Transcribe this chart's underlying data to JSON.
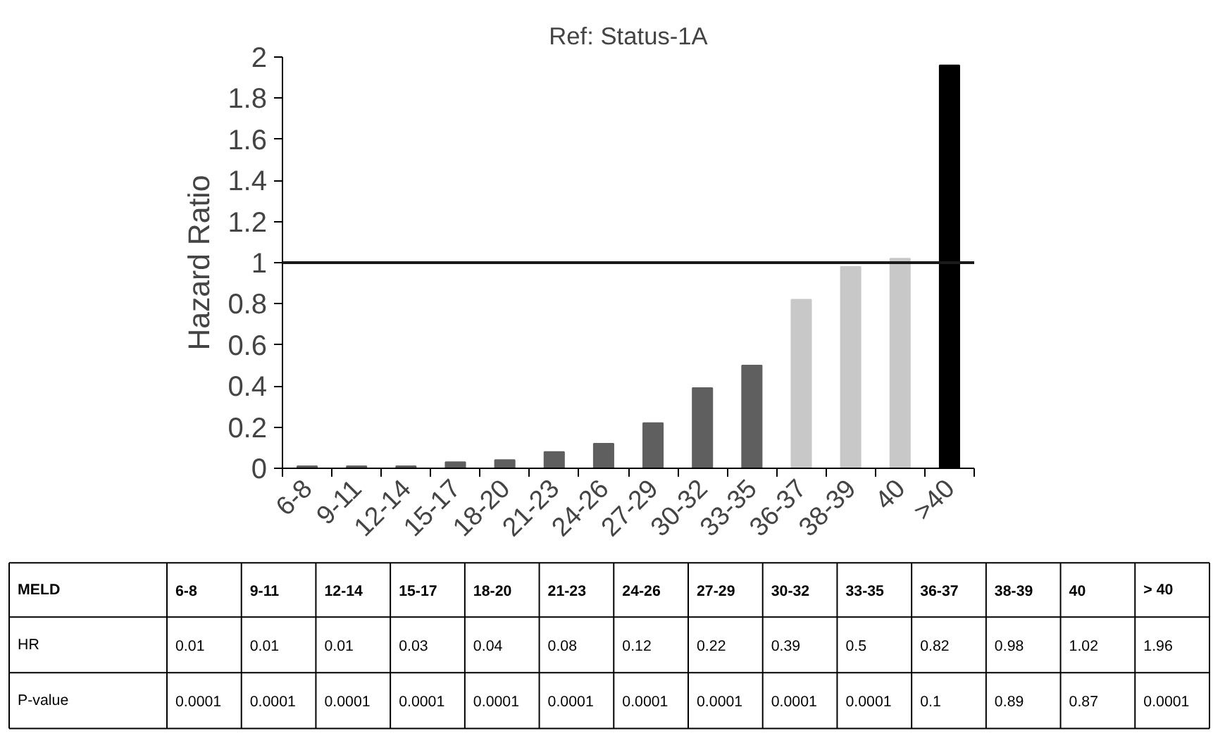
{
  "chart_data": {
    "type": "bar",
    "title": "Ref: Status-1A",
    "ylabel": "Hazard Ratio",
    "categories": [
      "6-8",
      "9-11",
      "12-14",
      "15-17",
      "18-20",
      "21-23",
      "24-26",
      "27-29",
      "30-32",
      "33-35",
      "36-37",
      "38-39",
      "40",
      ">40"
    ],
    "values": [
      0.01,
      0.01,
      0.01,
      0.03,
      0.04,
      0.08,
      0.12,
      0.22,
      0.39,
      0.5,
      0.82,
      0.98,
      1.02,
      1.96
    ],
    "colors": [
      "#5f5f5f",
      "#5f5f5f",
      "#5f5f5f",
      "#5f5f5f",
      "#5f5f5f",
      "#5f5f5f",
      "#5f5f5f",
      "#5f5f5f",
      "#5f5f5f",
      "#5f5f5f",
      "#c8c8c8",
      "#c8c8c8",
      "#c8c8c8",
      "#000000"
    ],
    "ylim": [
      0,
      2
    ],
    "yticks": [
      0,
      0.2,
      0.4,
      0.6,
      0.8,
      1,
      1.2,
      1.4,
      1.6,
      1.8,
      2
    ],
    "grid": false,
    "ref_lines": [
      {
        "axis": "y",
        "value": 1,
        "color": "#1a1a1a"
      }
    ],
    "annotations": [
      "MELD",
      "6-8",
      "9-11",
      "12-14",
      "15-17",
      "18-20",
      "21-23",
      "24-26",
      "27-29",
      "30-32",
      "33-35",
      "36-37",
      "38-39",
      "40",
      "> 40",
      "HR",
      "0.01",
      "0.01",
      "0.01",
      "0.03",
      "0.04",
      "0.08",
      "0.12",
      "0.22",
      "0.39",
      "0.5",
      "0.82",
      "0.98",
      "1.02",
      "1.96",
      "P-value",
      "0.0001",
      "0.0001",
      "0.0001",
      "0.0001",
      "0.0001",
      "0.0001",
      "0.0001",
      "0.0001",
      "0.0001",
      "0.0001",
      "0.1",
      "0.89",
      "0.87",
      "0.0001"
    ]
  }
}
